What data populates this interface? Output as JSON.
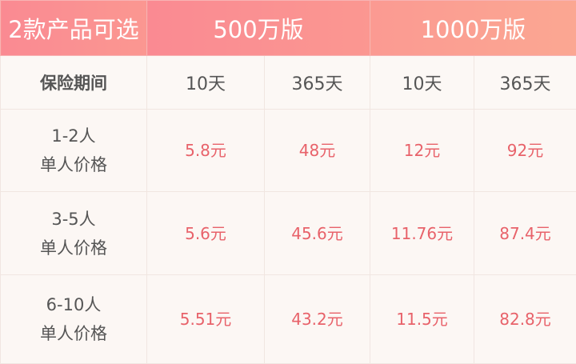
{
  "header": {
    "title": "2款产品可选",
    "plans": [
      "500万版",
      "1000万版"
    ]
  },
  "subheader": {
    "label": "保险期间",
    "periods": [
      "10天",
      "365天",
      "10天",
      "365天"
    ]
  },
  "rows": [
    {
      "group": "1-2人",
      "desc": "单人价格",
      "prices": [
        "5.8元",
        "48元",
        "12元",
        "92元"
      ]
    },
    {
      "group": "3-5人",
      "desc": "单人价格",
      "prices": [
        "5.6元",
        "45.6元",
        "11.76元",
        "87.4元"
      ]
    },
    {
      "group": "6-10人",
      "desc": "单人价格",
      "prices": [
        "5.51元",
        "43.2元",
        "11.5元",
        "82.8元"
      ]
    }
  ],
  "colors": {
    "header": "#fa8a92",
    "price": "#e8626a",
    "background": "#fcf7f4"
  }
}
